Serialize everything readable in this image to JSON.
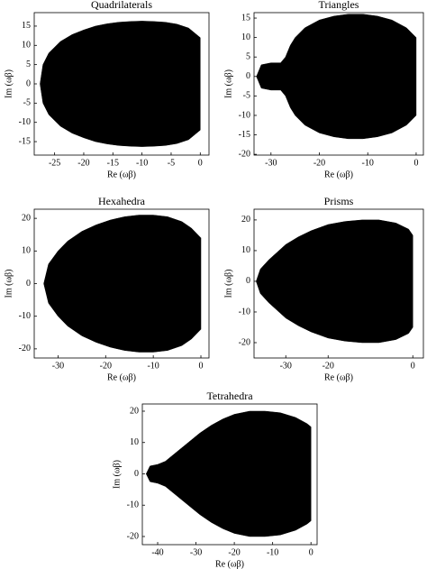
{
  "chart_data": [
    {
      "type": "area",
      "title": "Quadrilaterals",
      "xlabel": "Re (ωβ)",
      "ylabel": "Im (ωβ)",
      "color": "#000000",
      "xlim": [
        -28.5,
        1.5
      ],
      "ylim": [
        -18.5,
        18.5
      ],
      "xticks": [
        -25,
        -20,
        -15,
        -10,
        -5,
        0
      ],
      "yticks": [
        -15,
        -10,
        -5,
        0,
        5,
        10,
        15
      ],
      "x": [
        -27.5,
        -27,
        -26,
        -24,
        -22,
        -20,
        -18,
        -16,
        -14,
        -12,
        -10,
        -8,
        -6,
        -4,
        -2,
        0
      ],
      "ymax": [
        0,
        5,
        8,
        11,
        12.8,
        14,
        15,
        15.6,
        16,
        16.2,
        16.3,
        16.2,
        16,
        15.5,
        14.5,
        12
      ],
      "ymin": [
        0,
        -5,
        -8,
        -11,
        -12.8,
        -14,
        -15,
        -15.6,
        -16,
        -16.2,
        -16.3,
        -16.2,
        -16,
        -15.5,
        -14.5,
        -12
      ]
    },
    {
      "type": "area",
      "title": "Triangles",
      "xlabel": "Re (ωβ)",
      "ylabel": "Im (ωβ)",
      "color": "#000000",
      "xlim": [
        -33.5,
        1.5
      ],
      "ylim": [
        -20.2,
        16.4
      ],
      "xticks": [
        -30,
        -20,
        -10,
        0
      ],
      "yticks": [
        -20,
        -15,
        -10,
        -5,
        0,
        5,
        10,
        15
      ],
      "x": [
        -33,
        -32,
        -30,
        -28,
        -27,
        -26,
        -25,
        -23,
        -20,
        -17,
        -14,
        -11,
        -8,
        -5,
        -2,
        0
      ],
      "ymax": [
        0,
        3,
        3.5,
        3.5,
        5,
        8,
        10,
        12.5,
        14.5,
        15.5,
        16,
        16,
        15.5,
        14.5,
        12.5,
        10
      ],
      "ymin": [
        0,
        -3,
        -3.5,
        -3.5,
        -5,
        -8,
        -10,
        -12.5,
        -14.5,
        -15.5,
        -16,
        -16,
        -15.5,
        -14.5,
        -12.5,
        -10
      ]
    },
    {
      "type": "area",
      "title": "Hexahedra",
      "xlabel": "Re (ωβ)",
      "ylabel": "Im (ωβ)",
      "color": "#000000",
      "xlim": [
        -35,
        1.7
      ],
      "ylim": [
        -22.8,
        22.8
      ],
      "xticks": [
        -30,
        -20,
        -10,
        0
      ],
      "yticks": [
        -20,
        -10,
        0,
        10,
        20
      ],
      "x": [
        -33,
        -32,
        -30,
        -28,
        -25,
        -22,
        -19,
        -16,
        -13,
        -10,
        -7,
        -4,
        -2,
        0
      ],
      "ymax": [
        0,
        6,
        10,
        13,
        16,
        18,
        19.5,
        20.5,
        21,
        21,
        20.5,
        19,
        17,
        14
      ],
      "ymin": [
        0,
        -6,
        -10,
        -13,
        -16,
        -18,
        -19.5,
        -20.5,
        -21,
        -21,
        -20.5,
        -19,
        -17,
        -14
      ]
    },
    {
      "type": "area",
      "title": "Prisms",
      "xlabel": "Re (ωβ)",
      "ylabel": "Im (ωβ)",
      "color": "#000000",
      "xlim": [
        -37.5,
        2.5
      ],
      "ylim": [
        -25,
        23.5
      ],
      "xticks": [
        -30,
        -20,
        0
      ],
      "yticks": [
        -20,
        -10,
        0,
        10,
        20
      ],
      "x": [
        -37,
        -36,
        -34,
        -32,
        -30,
        -27,
        -24,
        -20,
        -16,
        -12,
        -8,
        -4,
        -1,
        0
      ],
      "ymax": [
        0,
        4,
        7,
        9.5,
        12,
        14.5,
        16.5,
        18.5,
        19.5,
        20,
        20,
        19,
        17,
        15
      ],
      "ymin": [
        0,
        -4,
        -7,
        -9.5,
        -12,
        -14.5,
        -16.5,
        -18.5,
        -19.5,
        -20,
        -20,
        -19,
        -17,
        -15
      ]
    },
    {
      "type": "area",
      "title": "Tetrahedra",
      "xlabel": "Re (ωβ)",
      "ylabel": "Im (ωβ)",
      "color": "#000000",
      "xlim": [
        -44,
        1.6
      ],
      "ylim": [
        -22.6,
        22.3
      ],
      "xticks": [
        -40,
        -30,
        -20,
        -10,
        0
      ],
      "yticks": [
        -20,
        -10,
        0,
        10,
        20
      ],
      "x": [
        -43,
        -42,
        -40,
        -38,
        -35,
        -32,
        -29,
        -26,
        -23,
        -20,
        -16,
        -12,
        -8,
        -4,
        -1,
        0
      ],
      "ymax": [
        0,
        2.5,
        3,
        4,
        7,
        10,
        13,
        15.5,
        17.5,
        19,
        20,
        20,
        19.5,
        18,
        16,
        15
      ],
      "ymin": [
        0,
        -2.5,
        -3,
        -4,
        -7,
        -10,
        -13,
        -15.5,
        -17.5,
        -19,
        -20,
        -20,
        -19.5,
        -18,
        -16,
        -15
      ]
    }
  ]
}
